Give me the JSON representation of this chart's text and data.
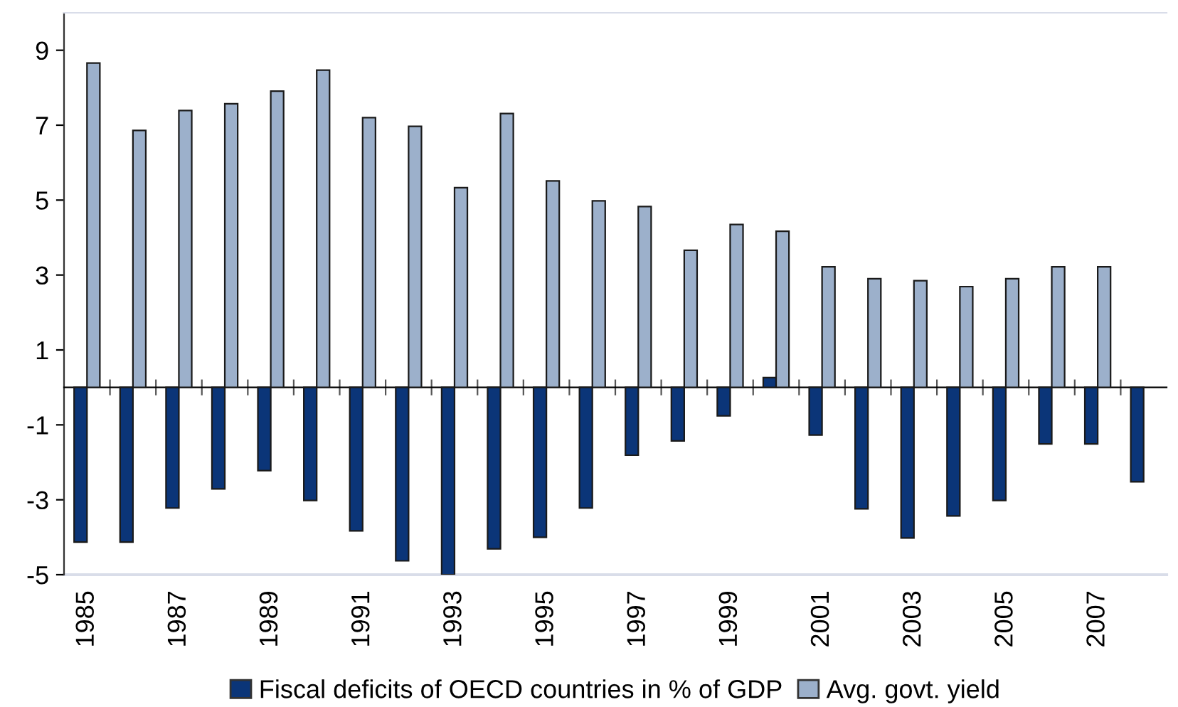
{
  "chart_data": {
    "type": "bar",
    "categories": [
      "1985",
      null,
      "1987",
      null,
      "1989",
      null,
      "1991",
      null,
      "1993",
      null,
      "1995",
      null,
      "1997",
      null,
      "1999",
      null,
      "2001",
      null,
      "2003",
      null,
      "2005",
      null,
      "2007",
      null
    ],
    "series": [
      {
        "name": "Fiscal deficits of OECD countries in % of GDP",
        "color": "#0b3578",
        "values": [
          -4.13,
          -4.13,
          -3.22,
          -2.71,
          -2.22,
          -3.02,
          -3.83,
          -4.63,
          -5.0,
          -4.31,
          -4.0,
          -3.22,
          -1.81,
          -1.43,
          -0.76,
          0.26,
          -1.27,
          -3.24,
          -4.02,
          -3.43,
          -3.02,
          -1.51,
          -1.51,
          -2.52
        ]
      },
      {
        "name": "Avg. govt. yield",
        "color": "#9cb0cb",
        "values": [
          8.66,
          6.86,
          7.39,
          7.57,
          7.91,
          8.47,
          7.2,
          6.97,
          5.33,
          7.31,
          5.51,
          4.98,
          4.83,
          3.66,
          4.35,
          4.17,
          3.22,
          2.9,
          2.85,
          2.69,
          2.9,
          3.22,
          3.22,
          null
        ]
      }
    ],
    "ylim": [
      -5,
      10
    ],
    "yticks": [
      -5,
      -3,
      -1,
      1,
      3,
      5,
      7,
      9
    ],
    "grid": false,
    "legend": "bottom"
  }
}
